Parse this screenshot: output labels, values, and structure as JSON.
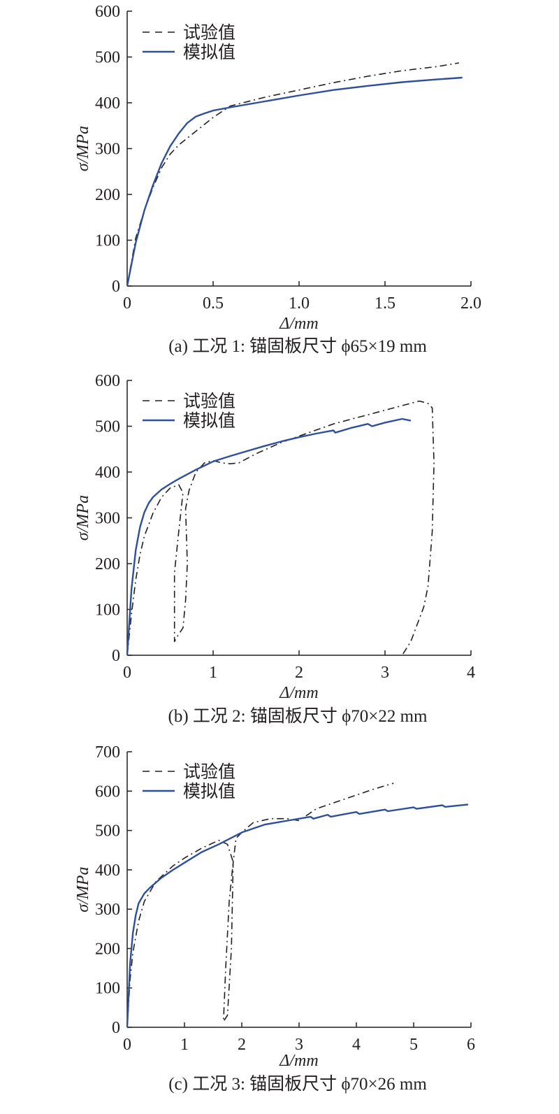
{
  "colors": {
    "experimental": "#231f20",
    "simulated": "#2e4f9c",
    "axis": "#231f20"
  },
  "chart_data": [
    {
      "type": "line",
      "caption": "(a) 工况 1: 锚固板尺寸 ϕ65×19 mm",
      "xlabel": "Δ/mm",
      "ylabel": "σ/MPa",
      "xlim": [
        0,
        2.0
      ],
      "ylim": [
        0,
        600
      ],
      "xticks": [
        "0",
        "0.5",
        "1.0",
        "1.5",
        "2.0"
      ],
      "yticks": [
        "0",
        "100",
        "200",
        "300",
        "400",
        "500",
        "600"
      ],
      "legend": {
        "position": "top-left",
        "entries": [
          "试验值",
          "模拟值"
        ]
      },
      "grid": false,
      "series": [
        {
          "name": "试验值",
          "style": "dash-dot",
          "color": "#231f20",
          "x": [
            0,
            0.05,
            0.1,
            0.15,
            0.2,
            0.25,
            0.3,
            0.4,
            0.5,
            0.6,
            0.8,
            1.0,
            1.2,
            1.4,
            1.6,
            1.8,
            1.93
          ],
          "y": [
            0,
            105,
            165,
            215,
            258,
            288,
            308,
            338,
            368,
            393,
            412,
            428,
            444,
            458,
            470,
            479,
            487
          ]
        },
        {
          "name": "模拟值",
          "style": "solid",
          "color": "#2e4f9c",
          "x": [
            0,
            0.05,
            0.1,
            0.15,
            0.2,
            0.25,
            0.3,
            0.35,
            0.4,
            0.45,
            0.5,
            0.6,
            0.8,
            1.0,
            1.2,
            1.4,
            1.6,
            1.8,
            1.95
          ],
          "y": [
            0,
            95,
            165,
            220,
            268,
            305,
            333,
            356,
            370,
            377,
            383,
            390,
            403,
            416,
            428,
            437,
            445,
            451,
            455
          ]
        }
      ]
    },
    {
      "type": "line",
      "caption": "(b) 工况 2: 锚固板尺寸 ϕ70×22 mm",
      "xlabel": "Δ/mm",
      "ylabel": "σ/MPa",
      "xlim": [
        0,
        4
      ],
      "ylim": [
        0,
        600
      ],
      "xticks": [
        "0",
        "1",
        "2",
        "3",
        "4"
      ],
      "yticks": [
        "0",
        "100",
        "200",
        "300",
        "400",
        "500",
        "600"
      ],
      "legend": {
        "position": "top-left",
        "entries": [
          "试验值",
          "模拟值"
        ]
      },
      "grid": false,
      "series": [
        {
          "name": "试验值",
          "style": "dash-dot",
          "color": "#231f20",
          "x": [
            0,
            0.05,
            0.1,
            0.15,
            0.2,
            0.3,
            0.4,
            0.5,
            0.6,
            0.65,
            0.6,
            0.55,
            0.55,
            0.58,
            0.65,
            0.68,
            0.7,
            0.68,
            0.72,
            0.8,
            0.9,
            1.0,
            1.1,
            1.2,
            1.3,
            1.5,
            1.8,
            2.1,
            2.4,
            2.7,
            3.0,
            3.2,
            3.4,
            3.5,
            3.55,
            3.57,
            3.55,
            3.5,
            3.45,
            3.4,
            3.3,
            3.2
          ],
          "y": [
            0,
            90,
            165,
            220,
            260,
            310,
            345,
            365,
            372,
            355,
            270,
            180,
            30,
            40,
            60,
            120,
            200,
            320,
            360,
            400,
            420,
            425,
            420,
            418,
            420,
            440,
            465,
            485,
            505,
            520,
            535,
            545,
            555,
            550,
            540,
            420,
            270,
            150,
            105,
            80,
            30,
            0
          ]
        },
        {
          "name": "模拟值",
          "style": "solid",
          "color": "#2e4f9c",
          "x": [
            0,
            0.05,
            0.1,
            0.15,
            0.2,
            0.25,
            0.3,
            0.4,
            0.5,
            0.6,
            0.8,
            1.0,
            1.2,
            1.4,
            1.6,
            1.8,
            2.0,
            2.2,
            2.4,
            2.42,
            2.6,
            2.8,
            2.85,
            3.0,
            3.2,
            3.3
          ],
          "y": [
            0,
            145,
            230,
            280,
            312,
            332,
            345,
            362,
            374,
            385,
            405,
            423,
            435,
            446,
            457,
            467,
            476,
            484,
            491,
            486,
            496,
            505,
            500,
            508,
            516,
            512
          ]
        }
      ]
    },
    {
      "type": "line",
      "caption": "(c) 工况 3: 锚固板尺寸 ϕ70×26 mm",
      "xlabel": "Δ/mm",
      "ylabel": "σ/MPa",
      "xlim": [
        0,
        6
      ],
      "ylim": [
        0,
        700
      ],
      "xticks": [
        "0",
        "1",
        "2",
        "3",
        "4",
        "5",
        "6"
      ],
      "yticks": [
        "0",
        "100",
        "200",
        "300",
        "400",
        "500",
        "600",
        "700"
      ],
      "legend": {
        "position": "top-left",
        "entries": [
          "试验值",
          "模拟值"
        ]
      },
      "grid": false,
      "series": [
        {
          "name": "试验值",
          "style": "dash-dot",
          "color": "#231f20",
          "x": [
            0,
            0.05,
            0.1,
            0.2,
            0.3,
            0.5,
            0.8,
            1.0,
            1.3,
            1.6,
            1.75,
            1.85,
            1.78,
            1.72,
            1.68,
            1.75,
            1.82,
            1.85,
            1.9,
            2.0,
            2.2,
            2.5,
            2.8,
            3.0,
            3.3,
            3.6,
            4.0,
            4.3,
            4.65
          ],
          "y": [
            0,
            120,
            190,
            270,
            320,
            370,
            410,
            430,
            455,
            475,
            465,
            420,
            320,
            150,
            15,
            30,
            200,
            420,
            480,
            495,
            520,
            530,
            530,
            525,
            555,
            570,
            590,
            605,
            620
          ]
        },
        {
          "name": "模拟值",
          "style": "solid",
          "color": "#2e4f9c",
          "x": [
            0,
            0.05,
            0.1,
            0.15,
            0.2,
            0.3,
            0.4,
            0.6,
            0.8,
            1.0,
            1.3,
            1.6,
            2.0,
            2.4,
            2.8,
            3.2,
            3.25,
            3.5,
            3.55,
            4.0,
            4.05,
            4.5,
            4.55,
            5.0,
            5.05,
            5.5,
            5.55,
            5.95
          ],
          "y": [
            0,
            160,
            240,
            285,
            315,
            340,
            355,
            380,
            400,
            418,
            445,
            465,
            495,
            515,
            525,
            535,
            530,
            540,
            535,
            547,
            542,
            553,
            549,
            559,
            555,
            564,
            560,
            566
          ]
        }
      ]
    }
  ]
}
